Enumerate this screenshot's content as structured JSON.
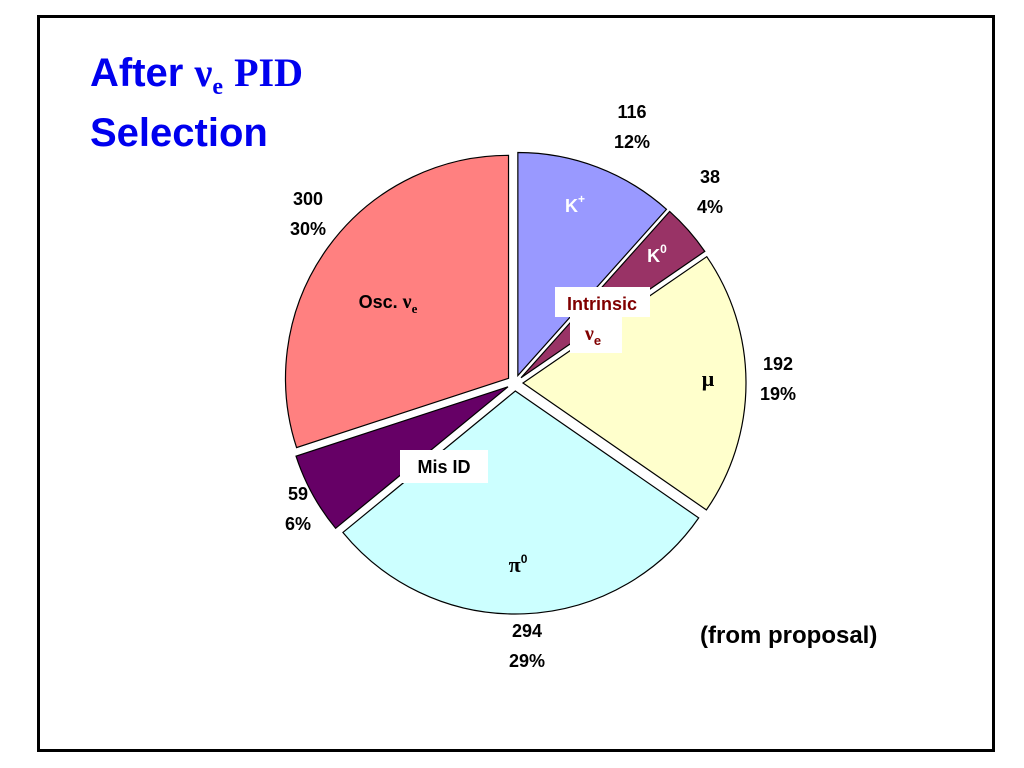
{
  "page": {
    "title_prefix": "After",
    "title_greek": "ν",
    "title_subscript": "e",
    "title_pid": "PID",
    "title_line2": "Selection",
    "source_note": "(from proposal)"
  },
  "chart_data": {
    "type": "pie",
    "title": "After νe PID Selection",
    "slices": [
      {
        "label": "K+",
        "label_main": "K",
        "label_sup": "+",
        "value": 116,
        "percent": "12%",
        "value_label": "116",
        "color": "#9999ff",
        "label_color": "#ffffff",
        "group": "Intrinsic νe"
      },
      {
        "label": "K0",
        "label_main": "K",
        "label_sup": "0",
        "value": 38,
        "percent": "4%",
        "value_label": "38",
        "color": "#993366",
        "label_color": "#ffffff",
        "group": "Intrinsic νe"
      },
      {
        "label": "μ",
        "label_main": "μ",
        "label_sup": "",
        "value": 192,
        "percent": "19%",
        "value_label": "192",
        "color": "#ffffcc",
        "label_color": "#000000",
        "group": "Intrinsic νe"
      },
      {
        "label": "π0",
        "label_main": "π",
        "label_sup": "0",
        "value": 294,
        "percent": "29%",
        "value_label": "294",
        "color": "#ccffff",
        "label_color": "#000000",
        "group": "Mis ID"
      },
      {
        "label": "Mis ID",
        "label_main": "",
        "label_sup": "",
        "value": 59,
        "percent": "6%",
        "value_label": "59",
        "color": "#660066",
        "label_color": "#000000",
        "group": "Mis ID"
      },
      {
        "label": "Osc. νe",
        "label_main": "Osc. ν",
        "label_sup": "",
        "label_sub": "e",
        "value": 300,
        "percent": "30%",
        "value_label": "300",
        "color": "#ff8080",
        "label_color": "#000000",
        "group": "Oscillation"
      }
    ],
    "group_labels": {
      "intrinsic_line1": "Intrinsic",
      "intrinsic_line2": "ν",
      "intrinsic_line2_sub": "e",
      "intrinsic_color": "#800000",
      "misid": "Mis ID"
    }
  }
}
